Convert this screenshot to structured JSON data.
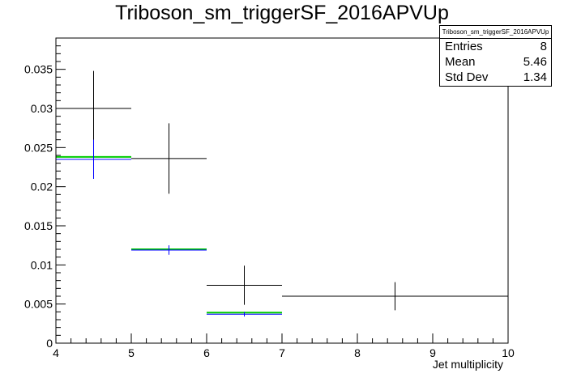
{
  "chart_data": {
    "type": "histogram",
    "title": "Triboson_sm_triggerSF_2016APVUp",
    "xlabel": "Jet multiplicity",
    "ylabel": "",
    "xlim": [
      4,
      10
    ],
    "ylim": [
      0,
      0.039
    ],
    "x_ticks": [
      "4",
      "5",
      "6",
      "7",
      "8",
      "9",
      "10"
    ],
    "y_ticks": [
      "0",
      "0.005",
      "0.01",
      "0.015",
      "0.02",
      "0.025",
      "0.03",
      "0.035"
    ],
    "series": [
      {
        "color": "#000000",
        "bins": [
          {
            "xlow": 4,
            "xhigh": 5,
            "y": 0.03,
            "err": 0.0048
          },
          {
            "xlow": 5,
            "xhigh": 6,
            "y": 0.0236,
            "err": 0.0045
          },
          {
            "xlow": 6,
            "xhigh": 7,
            "y": 0.0074,
            "err": 0.0025
          },
          {
            "xlow": 7,
            "xhigh": 10,
            "y": 0.006,
            "err": 0.0018
          }
        ]
      },
      {
        "color": "#00cc00",
        "bins": [
          {
            "xlow": 4,
            "xhigh": 5,
            "y": 0.0238,
            "err": 0
          },
          {
            "xlow": 5,
            "xhigh": 6,
            "y": 0.012,
            "err": 0
          },
          {
            "xlow": 6,
            "xhigh": 7,
            "y": 0.0039,
            "err": 0
          }
        ]
      },
      {
        "color": "#0000ff",
        "bins": [
          {
            "xlow": 4,
            "xhigh": 5,
            "y": 0.0235,
            "err": 0.0025
          },
          {
            "xlow": 5,
            "xhigh": 6,
            "y": 0.0119,
            "err": 0.0006
          },
          {
            "xlow": 6,
            "xhigh": 7,
            "y": 0.0037,
            "err": 0.0003
          }
        ]
      }
    ],
    "stats_box": {
      "name": "Triboson_sm_triggerSF_2016APVUp",
      "rows": [
        {
          "label": "Entries",
          "value": "8"
        },
        {
          "label": "Mean",
          "value": "5.46"
        },
        {
          "label": "Std Dev",
          "value": "1.34"
        }
      ]
    }
  }
}
